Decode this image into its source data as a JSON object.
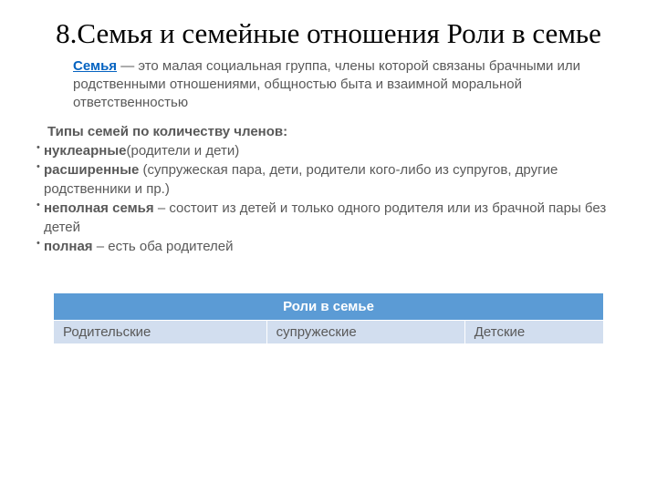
{
  "title": "8.Семья и семейные отношения Роли в семье",
  "definition": {
    "term": "Семья",
    "text": " — это малая социальная группа, члены которой связаны брачными или родственными отношениями, общностью быта и взаимной моральной ответственностью"
  },
  "subheading": "Типы семей по количеству членов:",
  "types": [
    {
      "bold": "нуклеарные",
      "rest": "(родители и дети)"
    },
    {
      "bold": "расширенные",
      "rest": " (супружеская пара, дети, родители кого-либо из супругов, другие родственники и пр.)"
    },
    {
      "bold": "неполная семья",
      "rest": " – состоит из детей и только одного родителя или из брачной пары без детей"
    },
    {
      "bold": "полная",
      "rest": " – есть оба родителей"
    }
  ],
  "table": {
    "header": "Роли в семье",
    "header_bg": "#5b9bd5",
    "row_bg": "#d2deef",
    "cells": [
      "Родительские",
      "супружеские",
      "Детские"
    ]
  },
  "colors": {
    "text": "#595959",
    "link": "#0563c1",
    "black": "#000000"
  }
}
